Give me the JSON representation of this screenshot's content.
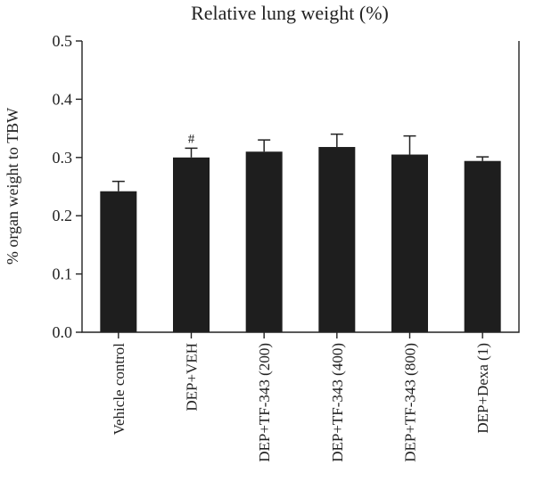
{
  "chart_data": {
    "type": "bar",
    "title": "Relative lung weight (%)",
    "ylabel": "% organ weight to TBW",
    "xlabel": "",
    "ylim": [
      0.0,
      0.5
    ],
    "yticks": [
      "0.0",
      "0.1",
      "0.2",
      "0.3",
      "0.4",
      "0.5"
    ],
    "grid": false,
    "bar_color": "#1e1e1e",
    "categories": [
      "Vehicle control",
      "DEP+VEH",
      "DEP+TF-343 (200)",
      "DEP+TF-343 (400)",
      "DEP+TF-343 (800)",
      "DEP+Dexa (1)"
    ],
    "values": [
      0.242,
      0.3,
      0.31,
      0.318,
      0.305,
      0.294
    ],
    "errors": [
      0.017,
      0.016,
      0.02,
      0.022,
      0.032,
      0.007
    ],
    "annotations": [
      {
        "category": "DEP+VEH",
        "text": "#"
      }
    ]
  }
}
